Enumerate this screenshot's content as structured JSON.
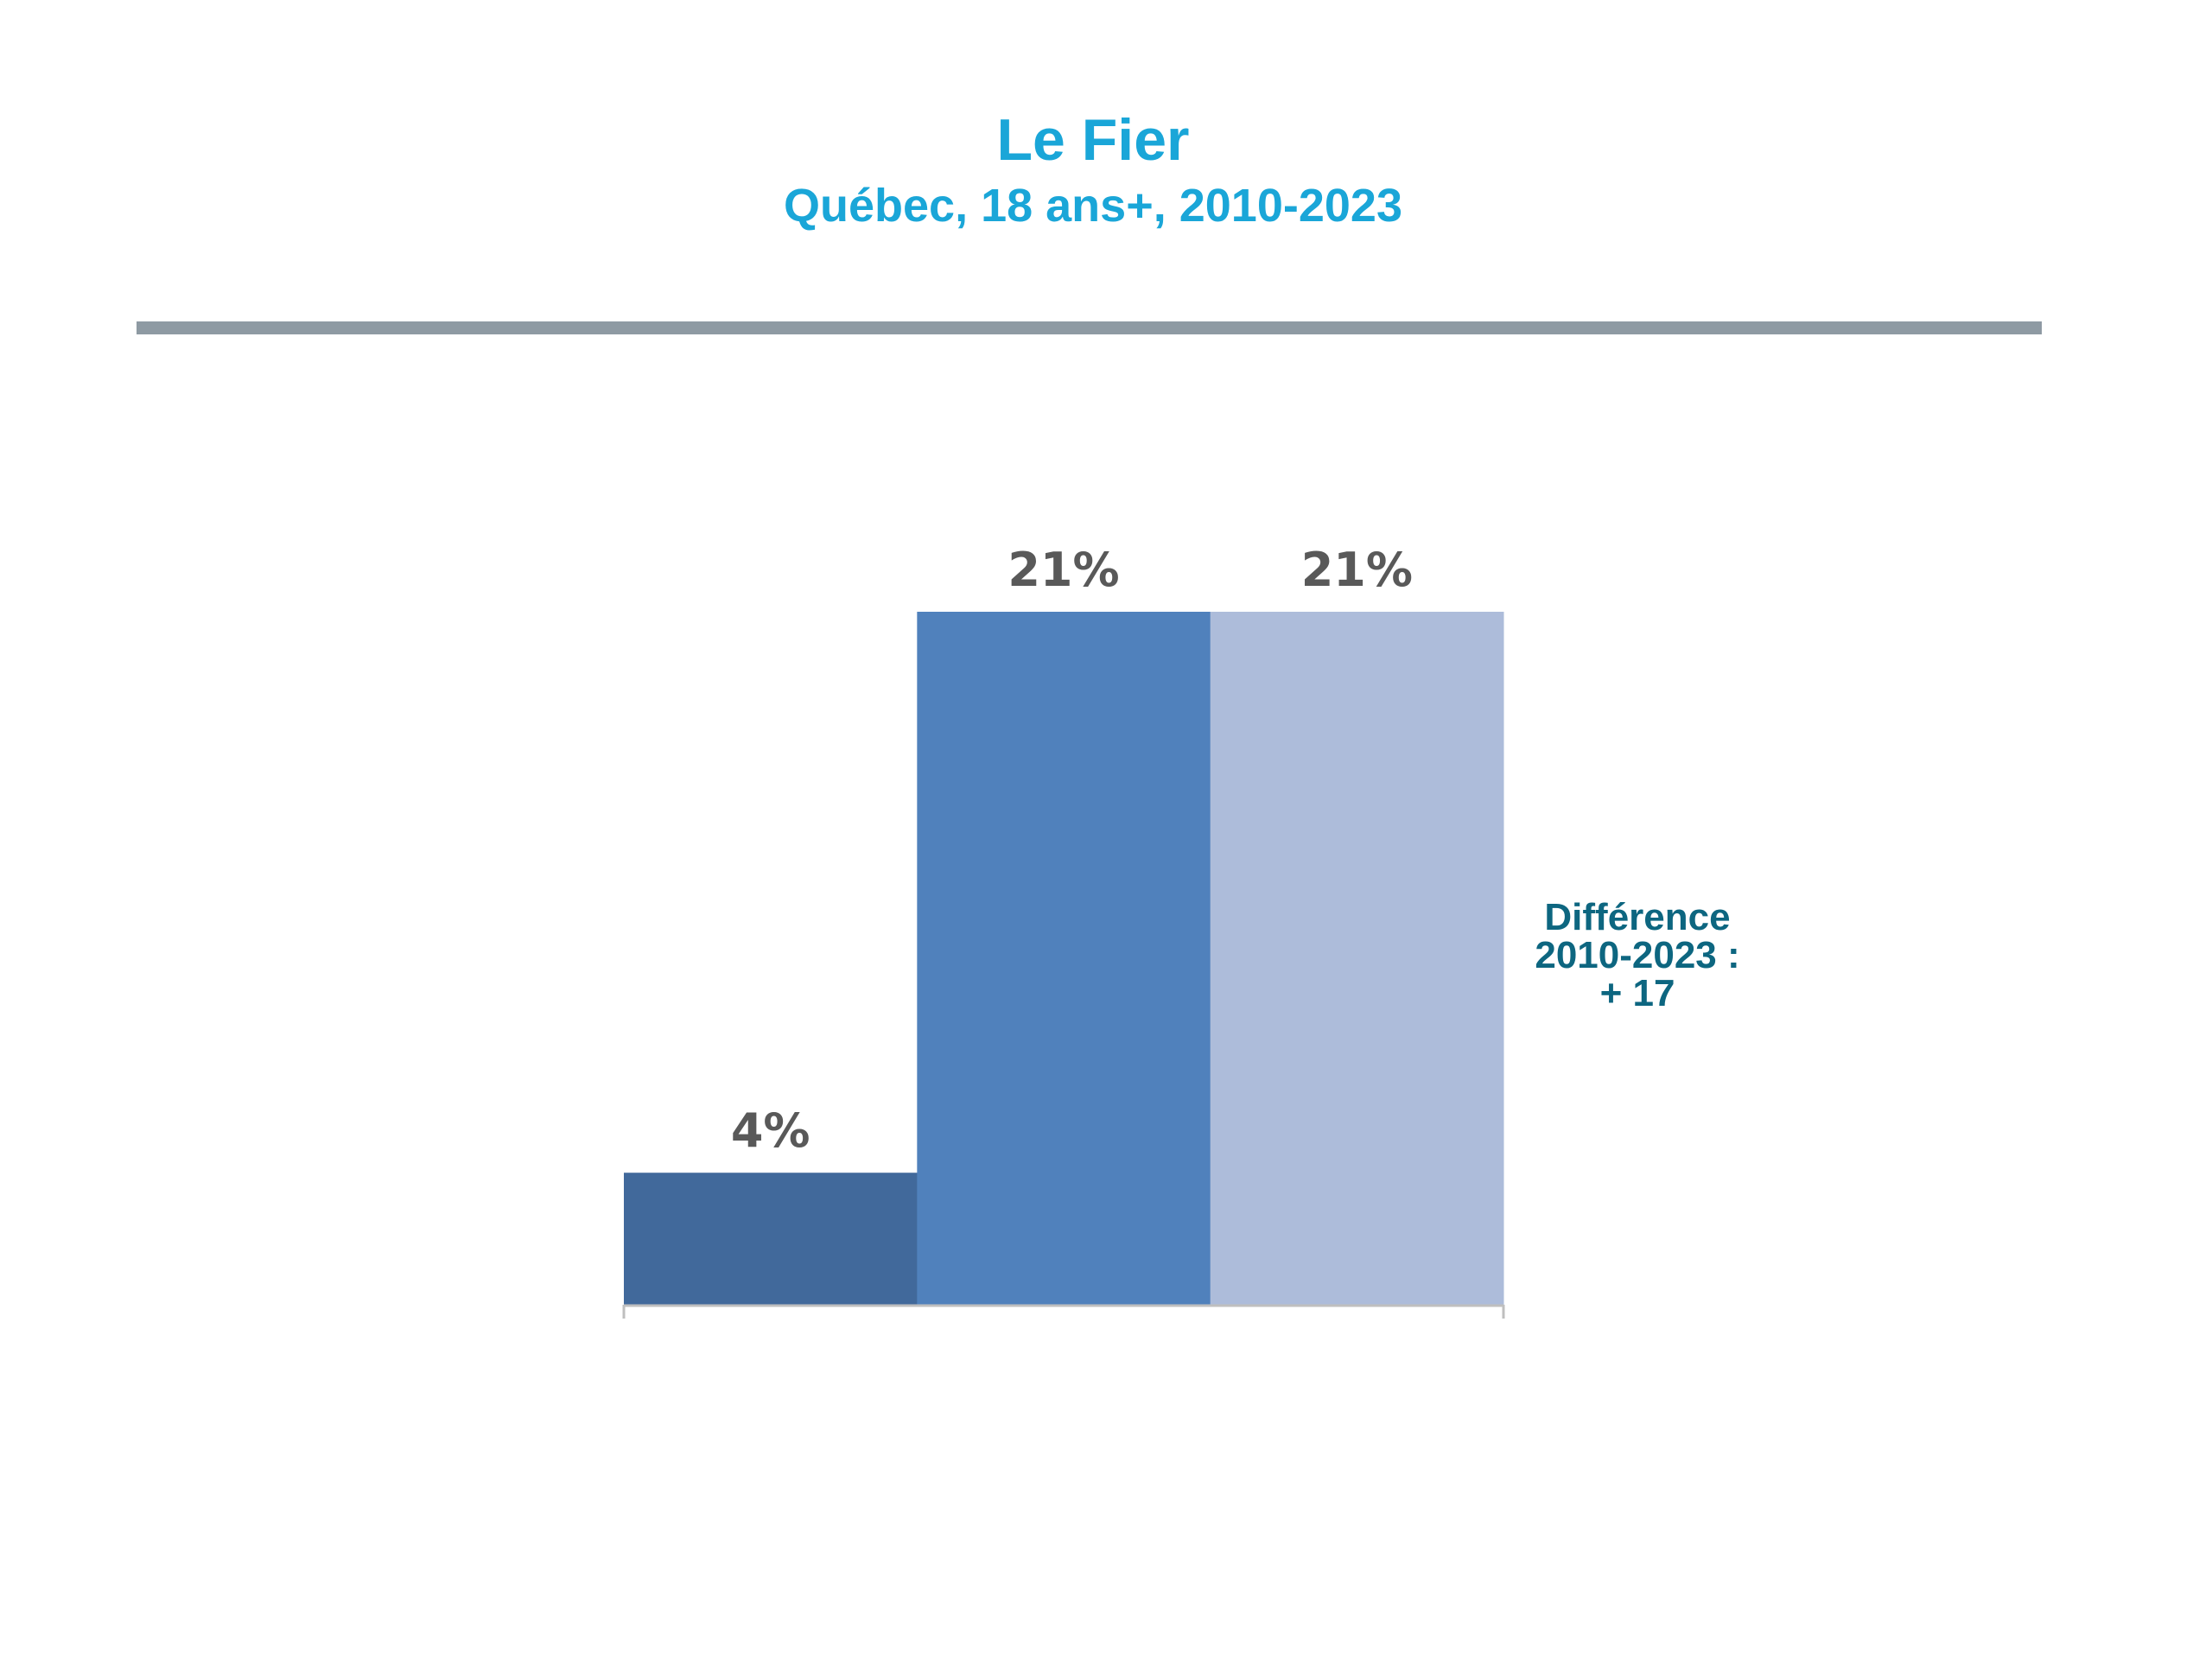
{
  "header": {
    "title": "Le Fier",
    "subtitle": "Québec, 18 ans+, 2010-2023"
  },
  "chart_data": {
    "type": "bar",
    "title": "Le Fier",
    "subtitle": "Québec, 18 ans+, 2010-2023",
    "categories": [
      "",
      "",
      ""
    ],
    "values": [
      4,
      21,
      21
    ],
    "data_labels": [
      "4%",
      "21%",
      "21%"
    ],
    "colors": [
      "#41699b",
      "#5081bc",
      "#adbcda"
    ],
    "ylim": [
      0,
      21
    ],
    "grid": false,
    "legend": "none",
    "annotation": [
      "Différence",
      "2010-2023 :",
      "+ 17"
    ],
    "annotation_color": "#0d6680"
  },
  "colors": {
    "title": "#1aa6d8",
    "rule": "#8e9aa3",
    "axis": "#bfbfbf",
    "label": "#595959"
  }
}
